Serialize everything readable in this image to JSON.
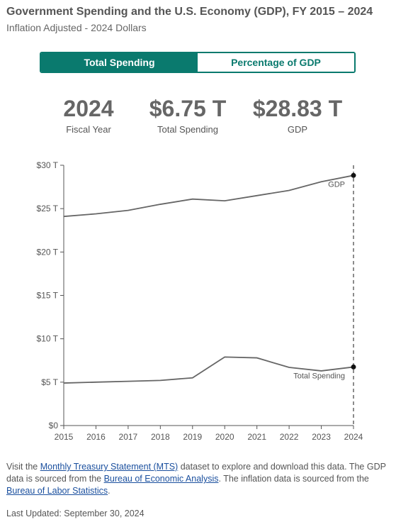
{
  "header": {
    "title": "Government Spending and the U.S. Economy (GDP), FY 2015 – 2024",
    "subtitle": "Inflation Adjusted - 2024 Dollars"
  },
  "toggle": {
    "options": [
      "Total Spending",
      "Percentage of GDP"
    ],
    "selected": "Total Spending"
  },
  "stats": [
    {
      "value": "2024",
      "label": "Fiscal Year"
    },
    {
      "value": "$6.75 T",
      "label": "Total Spending"
    },
    {
      "value": "$28.83 T",
      "label": "GDP"
    }
  ],
  "chart_data": {
    "type": "line",
    "x": [
      2015,
      2016,
      2017,
      2018,
      2019,
      2020,
      2021,
      2022,
      2023,
      2024
    ],
    "series": [
      {
        "name": "GDP",
        "values": [
          24.1,
          24.4,
          24.8,
          25.5,
          26.1,
          25.9,
          26.5,
          27.1,
          28.1,
          28.83
        ],
        "color": "#666666"
      },
      {
        "name": "Total Spending",
        "values": [
          4.9,
          5.0,
          5.1,
          5.2,
          5.5,
          7.9,
          7.8,
          6.7,
          6.3,
          6.75
        ],
        "color": "#666666"
      }
    ],
    "ylim": [
      0,
      30
    ],
    "yticks": [
      0,
      5,
      10,
      15,
      20,
      25,
      30
    ],
    "ytick_labels": [
      "$0",
      "$5 T",
      "$10 T",
      "$15 T",
      "$20 T",
      "$25 T",
      "$30 T"
    ],
    "xtick_labels": [
      "2015",
      "2016",
      "2017",
      "2018",
      "2019",
      "2020",
      "2021",
      "2022",
      "2023",
      "2024"
    ],
    "highlight_x": 2024,
    "grid": false
  },
  "footer": {
    "p1": "Visit the ",
    "link1": "Monthly Treasury Statement (MTS)",
    "p2": " dataset to explore and download this data. The GDP data is sourced from the ",
    "link2": "Bureau of Economic Analysis",
    "p3": ". The inflation data is sourced from the ",
    "link3": "Bureau of Labor Statistics",
    "p4": ".",
    "updated": "Last Updated: September 30, 2024"
  }
}
